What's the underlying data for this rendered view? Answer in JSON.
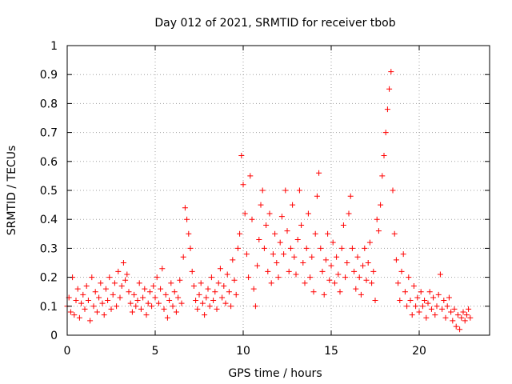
{
  "chart_data": {
    "type": "scatter",
    "title": "Day 012 of 2021, SRMTID for receiver tbob",
    "xlabel": "GPS time / hours",
    "ylabel": "SRMTID / TECUs",
    "xlim": [
      0,
      24
    ],
    "ylim": [
      0,
      1
    ],
    "xticks": [
      0,
      5,
      10,
      15,
      20
    ],
    "yticks": [
      0,
      0.1,
      0.2,
      0.3,
      0.4,
      0.5,
      0.6,
      0.7,
      0.8,
      0.9,
      1
    ],
    "xtick_labels": [
      "0",
      "5",
      "10",
      "15",
      "20"
    ],
    "ytick_labels": [
      "0",
      "0.1",
      "0.2",
      "0.3",
      "0.4",
      "0.5",
      "0.6",
      "0.7",
      "0.8",
      "0.9",
      "1"
    ],
    "grid": true,
    "marker": "plus",
    "color": "#ff0000",
    "series": [
      {
        "name": "SRMTID",
        "points": [
          [
            0.0,
            0.1
          ],
          [
            0.1,
            0.13
          ],
          [
            0.2,
            0.08
          ],
          [
            0.3,
            0.2
          ],
          [
            0.4,
            0.07
          ],
          [
            0.5,
            0.12
          ],
          [
            0.6,
            0.16
          ],
          [
            0.7,
            0.06
          ],
          [
            0.8,
            0.11
          ],
          [
            0.9,
            0.14
          ],
          [
            1.0,
            0.09
          ],
          [
            1.1,
            0.17
          ],
          [
            1.2,
            0.12
          ],
          [
            1.3,
            0.05
          ],
          [
            1.4,
            0.2
          ],
          [
            1.5,
            0.1
          ],
          [
            1.6,
            0.15
          ],
          [
            1.7,
            0.08
          ],
          [
            1.8,
            0.13
          ],
          [
            1.9,
            0.18
          ],
          [
            2.0,
            0.11
          ],
          [
            2.1,
            0.07
          ],
          [
            2.2,
            0.16
          ],
          [
            2.3,
            0.12
          ],
          [
            2.4,
            0.2
          ],
          [
            2.5,
            0.09
          ],
          [
            2.6,
            0.14
          ],
          [
            2.7,
            0.18
          ],
          [
            2.8,
            0.1
          ],
          [
            2.9,
            0.22
          ],
          [
            3.0,
            0.13
          ],
          [
            3.1,
            0.17
          ],
          [
            3.2,
            0.25
          ],
          [
            3.3,
            0.19
          ],
          [
            3.4,
            0.21
          ],
          [
            3.5,
            0.15
          ],
          [
            3.6,
            0.11
          ],
          [
            3.7,
            0.08
          ],
          [
            3.8,
            0.14
          ],
          [
            3.9,
            0.1
          ],
          [
            4.0,
            0.12
          ],
          [
            4.1,
            0.18
          ],
          [
            4.2,
            0.09
          ],
          [
            4.3,
            0.13
          ],
          [
            4.4,
            0.16
          ],
          [
            4.5,
            0.07
          ],
          [
            4.6,
            0.11
          ],
          [
            4.7,
            0.15
          ],
          [
            4.8,
            0.1
          ],
          [
            4.9,
            0.17
          ],
          [
            5.0,
            0.13
          ],
          [
            5.1,
            0.2
          ],
          [
            5.2,
            0.11
          ],
          [
            5.3,
            0.16
          ],
          [
            5.4,
            0.23
          ],
          [
            5.5,
            0.09
          ],
          [
            5.6,
            0.14
          ],
          [
            5.7,
            0.06
          ],
          [
            5.8,
            0.12
          ],
          [
            5.9,
            0.18
          ],
          [
            6.0,
            0.1
          ],
          [
            6.1,
            0.15
          ],
          [
            6.2,
            0.08
          ],
          [
            6.3,
            0.13
          ],
          [
            6.4,
            0.19
          ],
          [
            6.5,
            0.11
          ],
          [
            6.6,
            0.27
          ],
          [
            6.7,
            0.44
          ],
          [
            6.8,
            0.4
          ],
          [
            6.9,
            0.35
          ],
          [
            7.0,
            0.3
          ],
          [
            7.1,
            0.22
          ],
          [
            7.2,
            0.17
          ],
          [
            7.3,
            0.12
          ],
          [
            7.4,
            0.09
          ],
          [
            7.5,
            0.14
          ],
          [
            7.6,
            0.18
          ],
          [
            7.7,
            0.11
          ],
          [
            7.8,
            0.07
          ],
          [
            7.9,
            0.13
          ],
          [
            8.0,
            0.16
          ],
          [
            8.1,
            0.1
          ],
          [
            8.2,
            0.2
          ],
          [
            8.3,
            0.12
          ],
          [
            8.4,
            0.15
          ],
          [
            8.5,
            0.09
          ],
          [
            8.6,
            0.18
          ],
          [
            8.7,
            0.23
          ],
          [
            8.8,
            0.13
          ],
          [
            8.9,
            0.17
          ],
          [
            9.0,
            0.11
          ],
          [
            9.1,
            0.21
          ],
          [
            9.2,
            0.15
          ],
          [
            9.3,
            0.1
          ],
          [
            9.4,
            0.26
          ],
          [
            9.5,
            0.19
          ],
          [
            9.6,
            0.14
          ],
          [
            9.7,
            0.3
          ],
          [
            9.8,
            0.35
          ],
          [
            9.9,
            0.62
          ],
          [
            10.0,
            0.52
          ],
          [
            10.1,
            0.42
          ],
          [
            10.2,
            0.28
          ],
          [
            10.3,
            0.2
          ],
          [
            10.4,
            0.55
          ],
          [
            10.5,
            0.4
          ],
          [
            10.6,
            0.16
          ],
          [
            10.7,
            0.1
          ],
          [
            10.8,
            0.24
          ],
          [
            10.9,
            0.33
          ],
          [
            11.0,
            0.45
          ],
          [
            11.1,
            0.5
          ],
          [
            11.2,
            0.3
          ],
          [
            11.3,
            0.38
          ],
          [
            11.4,
            0.22
          ],
          [
            11.5,
            0.42
          ],
          [
            11.6,
            0.18
          ],
          [
            11.7,
            0.28
          ],
          [
            11.8,
            0.35
          ],
          [
            11.9,
            0.25
          ],
          [
            12.0,
            0.2
          ],
          [
            12.1,
            0.32
          ],
          [
            12.2,
            0.41
          ],
          [
            12.3,
            0.28
          ],
          [
            12.4,
            0.5
          ],
          [
            12.5,
            0.36
          ],
          [
            12.6,
            0.22
          ],
          [
            12.7,
            0.3
          ],
          [
            12.8,
            0.45
          ],
          [
            12.9,
            0.27
          ],
          [
            13.0,
            0.21
          ],
          [
            13.1,
            0.33
          ],
          [
            13.2,
            0.5
          ],
          [
            13.3,
            0.38
          ],
          [
            13.4,
            0.25
          ],
          [
            13.5,
            0.18
          ],
          [
            13.6,
            0.3
          ],
          [
            13.7,
            0.42
          ],
          [
            13.8,
            0.2
          ],
          [
            13.9,
            0.27
          ],
          [
            14.0,
            0.15
          ],
          [
            14.1,
            0.35
          ],
          [
            14.2,
            0.48
          ],
          [
            14.3,
            0.56
          ],
          [
            14.4,
            0.3
          ],
          [
            14.5,
            0.22
          ],
          [
            14.6,
            0.14
          ],
          [
            14.7,
            0.26
          ],
          [
            14.8,
            0.35
          ],
          [
            14.9,
            0.19
          ],
          [
            15.0,
            0.24
          ],
          [
            15.1,
            0.32
          ],
          [
            15.2,
            0.18
          ],
          [
            15.3,
            0.27
          ],
          [
            15.4,
            0.21
          ],
          [
            15.5,
            0.15
          ],
          [
            15.6,
            0.3
          ],
          [
            15.7,
            0.38
          ],
          [
            15.8,
            0.2
          ],
          [
            15.9,
            0.25
          ],
          [
            16.0,
            0.42
          ],
          [
            16.1,
            0.48
          ],
          [
            16.2,
            0.3
          ],
          [
            16.3,
            0.22
          ],
          [
            16.4,
            0.16
          ],
          [
            16.5,
            0.27
          ],
          [
            16.6,
            0.2
          ],
          [
            16.7,
            0.14
          ],
          [
            16.8,
            0.24
          ],
          [
            16.9,
            0.3
          ],
          [
            17.0,
            0.19
          ],
          [
            17.1,
            0.25
          ],
          [
            17.2,
            0.32
          ],
          [
            17.3,
            0.18
          ],
          [
            17.4,
            0.22
          ],
          [
            17.5,
            0.12
          ],
          [
            17.6,
            0.4
          ],
          [
            17.7,
            0.36
          ],
          [
            17.8,
            0.45
          ],
          [
            17.9,
            0.55
          ],
          [
            18.0,
            0.62
          ],
          [
            18.1,
            0.7
          ],
          [
            18.2,
            0.78
          ],
          [
            18.3,
            0.85
          ],
          [
            18.4,
            0.91
          ],
          [
            18.5,
            0.5
          ],
          [
            18.6,
            0.35
          ],
          [
            18.7,
            0.26
          ],
          [
            18.8,
            0.18
          ],
          [
            18.9,
            0.12
          ],
          [
            19.0,
            0.22
          ],
          [
            19.1,
            0.28
          ],
          [
            19.2,
            0.15
          ],
          [
            19.3,
            0.1
          ],
          [
            19.4,
            0.2
          ],
          [
            19.5,
            0.12
          ],
          [
            19.6,
            0.07
          ],
          [
            19.7,
            0.17
          ],
          [
            19.8,
            0.1
          ],
          [
            19.9,
            0.13
          ],
          [
            20.0,
            0.08
          ],
          [
            20.1,
            0.15
          ],
          [
            20.2,
            0.1
          ],
          [
            20.3,
            0.12
          ],
          [
            20.4,
            0.06
          ],
          [
            20.5,
            0.11
          ],
          [
            20.6,
            0.15
          ],
          [
            20.7,
            0.09
          ],
          [
            20.8,
            0.13
          ],
          [
            20.9,
            0.07
          ],
          [
            21.0,
            0.1
          ],
          [
            21.1,
            0.14
          ],
          [
            21.2,
            0.21
          ],
          [
            21.3,
            0.09
          ],
          [
            21.4,
            0.12
          ],
          [
            21.5,
            0.06
          ],
          [
            21.6,
            0.1
          ],
          [
            21.7,
            0.13
          ],
          [
            21.8,
            0.08
          ],
          [
            21.9,
            0.05
          ],
          [
            22.0,
            0.09
          ],
          [
            22.1,
            0.03
          ],
          [
            22.2,
            0.07
          ],
          [
            22.3,
            0.02
          ],
          [
            22.4,
            0.06
          ],
          [
            22.5,
            0.08
          ],
          [
            22.6,
            0.05
          ],
          [
            22.7,
            0.07
          ],
          [
            22.8,
            0.09
          ],
          [
            22.9,
            0.06
          ]
        ]
      }
    ]
  }
}
